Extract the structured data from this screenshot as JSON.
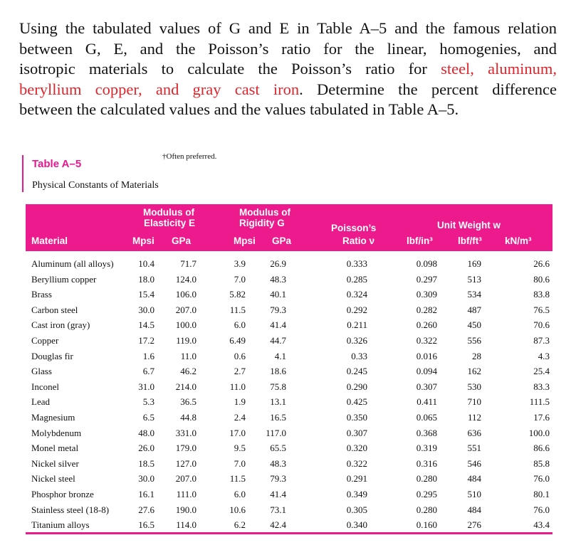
{
  "problem": {
    "lines": [
      [
        "Using the tabulated values of G and E in Table A–5 and the famous relation",
        ""
      ],
      [
        "between G, E, and the Poisson’s ratio for the linear, homogenies, and",
        ""
      ],
      [
        "isotropic materials  to calculate the Poisson’s ratio for ",
        "steel, aluminum,"
      ],
      [
        "",
        "beryllium copper, and gray cast iron"
      ],
      [
        "between the calculated values and the values tabulated in Table A–5.",
        ""
      ]
    ],
    "line4_tail": ". Determine the percent difference"
  },
  "table": {
    "note": "†Often preferred.",
    "title": "Table A–5",
    "subtitle": "Physical Constants of Materials",
    "header": {
      "material": "Material",
      "e_group": "Modulus of",
      "e_group2": "Elasticity E",
      "g_group": "Modulus of",
      "g_group2": "Rigidity G",
      "poisson1": "Poisson’s",
      "poisson2": "Ratio ν",
      "weight_group": "Unit Weight w",
      "mpsi_e": "Mpsi",
      "gpa_e": "GPa",
      "mpsi_g": "Mpsi",
      "gpa_g": "GPa",
      "lbf_in3": "lbf/in³",
      "lbf_ft3": "lbf/ft³",
      "kn_m3": "kN/m³"
    },
    "rows": [
      [
        "Aluminum (all alloys)",
        "10.4",
        "71.7",
        "3.9",
        "26.9",
        "0.333",
        "0.098",
        "169",
        "26.6"
      ],
      [
        "Beryllium copper",
        "18.0",
        "124.0",
        "7.0",
        "48.3",
        "0.285",
        "0.297",
        "513",
        "80.6"
      ],
      [
        "Brass",
        "15.4",
        "106.0",
        "5.82",
        "40.1",
        "0.324",
        "0.309",
        "534",
        "83.8"
      ],
      [
        "Carbon steel",
        "30.0",
        "207.0",
        "11.5",
        "79.3",
        "0.292",
        "0.282",
        "487",
        "76.5"
      ],
      [
        "Cast iron (gray)",
        "14.5",
        "100.0",
        "6.0",
        "41.4",
        "0.211",
        "0.260",
        "450",
        "70.6"
      ],
      [
        "Copper",
        "17.2",
        "119.0",
        "6.49",
        "44.7",
        "0.326",
        "0.322",
        "556",
        "87.3"
      ],
      [
        "Douglas fir",
        "1.6",
        "11.0",
        "0.6",
        "4.1",
        "0.33",
        "0.016",
        "28",
        "4.3"
      ],
      [
        "Glass",
        "6.7",
        "46.2",
        "2.7",
        "18.6",
        "0.245",
        "0.094",
        "162",
        "25.4"
      ],
      [
        "Inconel",
        "31.0",
        "214.0",
        "11.0",
        "75.8",
        "0.290",
        "0.307",
        "530",
        "83.3"
      ],
      [
        "Lead",
        "5.3",
        "36.5",
        "1.9",
        "13.1",
        "0.425",
        "0.411",
        "710",
        "111.5"
      ],
      [
        "Magnesium",
        "6.5",
        "44.8",
        "2.4",
        "16.5",
        "0.350",
        "0.065",
        "112",
        "17.6"
      ],
      [
        "Molybdenum",
        "48.0",
        "331.0",
        "17.0",
        "117.0",
        "0.307",
        "0.368",
        "636",
        "100.0"
      ],
      [
        "Monel metal",
        "26.0",
        "179.0",
        "9.5",
        "65.5",
        "0.320",
        "0.319",
        "551",
        "86.6"
      ],
      [
        "Nickel silver",
        "18.5",
        "127.0",
        "7.0",
        "48.3",
        "0.322",
        "0.316",
        "546",
        "85.8"
      ],
      [
        "Nickel steel",
        "30.0",
        "207.0",
        "11.5",
        "79.3",
        "0.291",
        "0.280",
        "484",
        "76.0"
      ],
      [
        "Phosphor bronze",
        "16.1",
        "111.0",
        "6.0",
        "41.4",
        "0.349",
        "0.295",
        "510",
        "80.1"
      ],
      [
        "Stainless steel (18-8)",
        "27.6",
        "190.0",
        "10.6",
        "73.1",
        "0.305",
        "0.280",
        "484",
        "76.0"
      ],
      [
        "Titanium alloys",
        "16.5",
        "114.0",
        "6.2",
        "42.4",
        "0.340",
        "0.160",
        "276",
        "43.4"
      ]
    ]
  },
  "colors": {
    "accent": "#ec1a8c",
    "highlight": "#e0242c"
  }
}
